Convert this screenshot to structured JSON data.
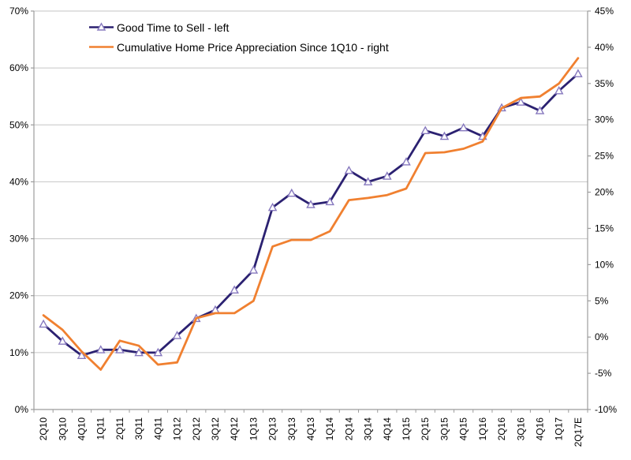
{
  "chart_data": {
    "type": "line",
    "title": "",
    "categories": [
      "2Q10",
      "3Q10",
      "4Q10",
      "1Q11",
      "2Q11",
      "3Q11",
      "4Q11",
      "1Q12",
      "2Q12",
      "3Q12",
      "4Q12",
      "1Q13",
      "2Q13",
      "3Q13",
      "4Q13",
      "1Q14",
      "2Q14",
      "3Q14",
      "4Q14",
      "1Q15",
      "2Q15",
      "3Q15",
      "4Q15",
      "1Q16",
      "2Q16",
      "3Q16",
      "4Q16",
      "1Q17",
      "2Q17E"
    ],
    "series": [
      {
        "name": "Good Time to Sell - left",
        "axis": "left",
        "color": "#2B2171",
        "marker": "open-triangle",
        "marker_stroke": "#8678BE",
        "marker_fill": "#FFFFFF",
        "values": [
          15,
          12,
          9.5,
          10.5,
          10.5,
          10,
          10,
          13,
          16,
          17.5,
          21,
          24.5,
          35.5,
          38,
          36,
          36.5,
          42,
          40,
          41,
          43.5,
          49,
          48,
          49.5,
          48,
          53,
          54,
          52.5,
          56,
          59
        ]
      },
      {
        "name": "Cumulative Home Price Appreciation Since 1Q10 - right",
        "axis": "right",
        "color": "#F08030",
        "marker": "none",
        "values": [
          3,
          1,
          -2,
          -4.5,
          -0.5,
          -1.2,
          -3.8,
          -3.5,
          2.6,
          3.3,
          3.3,
          5,
          12.5,
          13.4,
          13.4,
          14.6,
          18.9,
          19.2,
          19.6,
          20.5,
          25.4,
          25.5,
          26,
          27,
          31.6,
          33,
          33.2,
          35,
          38.5
        ]
      }
    ],
    "left_axis": {
      "min": 0,
      "max": 70,
      "step": 10,
      "tick_labels": [
        "70%",
        "60%",
        "50%",
        "40%",
        "30%",
        "20%",
        "10%",
        "0%"
      ]
    },
    "right_axis": {
      "min": -10,
      "max": 45,
      "step": 5,
      "tick_labels": [
        "45%",
        "40%",
        "35%",
        "30%",
        "25%",
        "20%",
        "15%",
        "10%",
        "5%",
        "0%",
        "-5%",
        "-10%"
      ]
    },
    "grid": "horizontal",
    "legend_position": "top-inside"
  },
  "colors": {
    "grid": "#C6C6C6",
    "axis": "#9C9C9C",
    "text": "#000000",
    "background": "#FFFFFF"
  }
}
